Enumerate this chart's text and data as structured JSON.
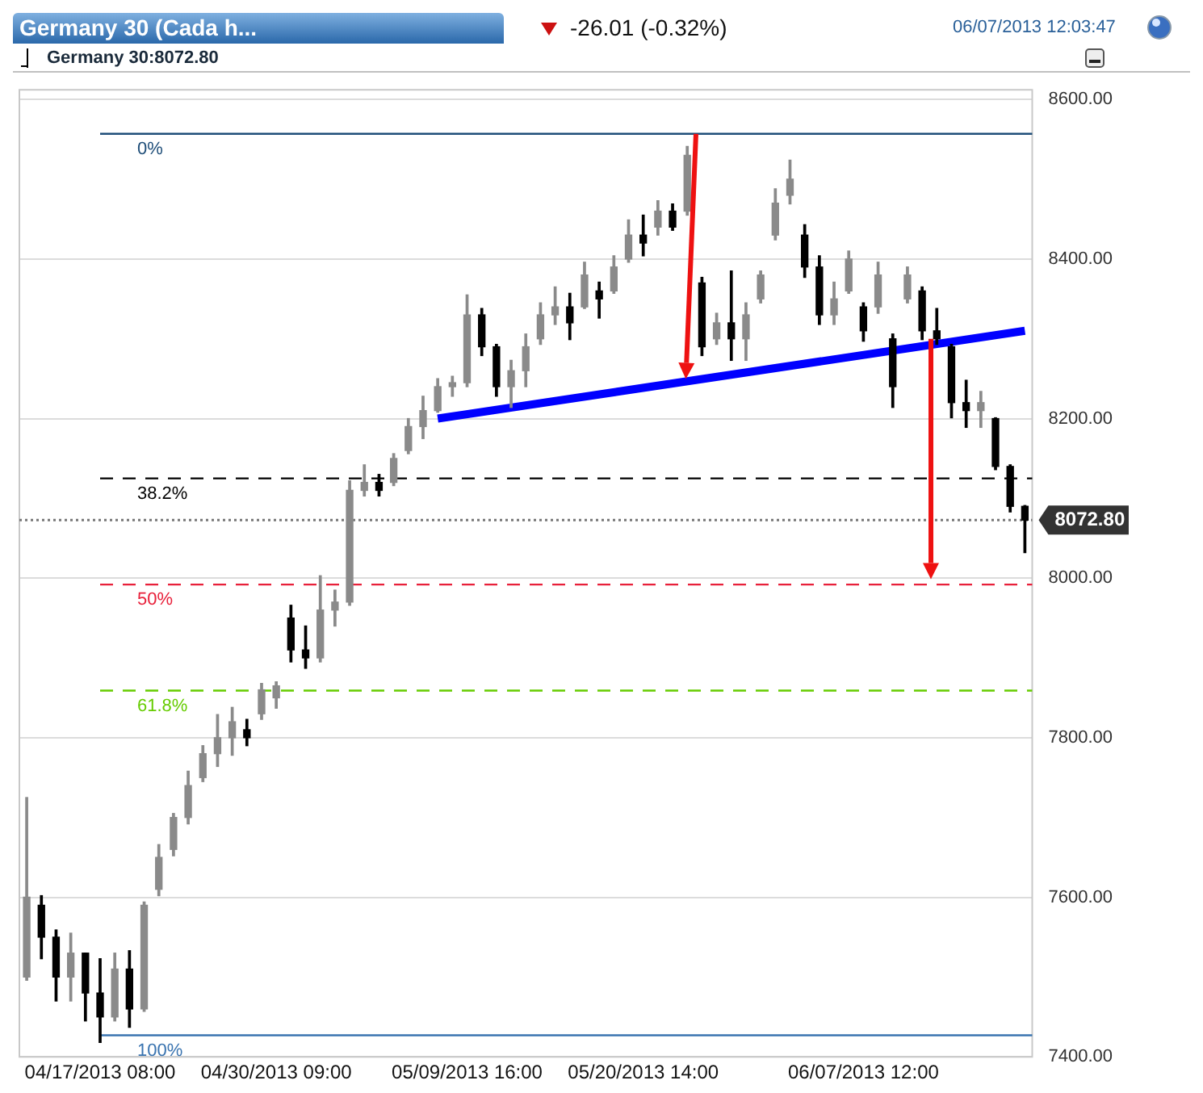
{
  "chart_data": {
    "type": "candlestick",
    "title": "Germany 30 (Cada h...",
    "annotations": [
      "-26.01 (-0.32%)",
      "06/07/2013 12:03:47",
      "Germany 30:8072.80",
      {
        "text": "0%",
        "y": 8557
      },
      {
        "text": "38.2%",
        "y": 8125
      },
      {
        "text": "50%",
        "y": 7992
      },
      {
        "text": "61.8%",
        "y": 7859
      },
      {
        "text": "100%",
        "y": 7427
      }
    ],
    "categories": [
      null,
      null,
      null,
      null,
      null,
      "04/17/2013 08:00",
      null,
      null,
      null,
      null,
      null,
      null,
      null,
      null,
      null,
      null,
      null,
      "04/30/2013 09:00",
      null,
      null,
      null,
      null,
      null,
      null,
      null,
      null,
      null,
      null,
      null,
      null,
      "05/09/2013 16:00",
      null,
      null,
      null,
      null,
      null,
      null,
      null,
      null,
      null,
      null,
      null,
      "05/20/2013 14:00",
      null,
      null,
      null,
      null,
      null,
      null,
      null,
      null,
      null,
      null,
      null,
      null,
      null,
      null,
      "06/07/2013 12:00",
      null,
      null,
      null,
      null,
      null,
      null,
      null,
      null,
      null,
      null,
      null
    ],
    "ohlc": [
      [
        7500,
        7725,
        7496,
        7600
      ],
      [
        7590,
        7602,
        7523,
        7550
      ],
      [
        7550,
        7559,
        7470,
        7500
      ],
      [
        7500,
        7555,
        7470,
        7530
      ],
      [
        7530,
        7530,
        7445,
        7480
      ],
      [
        7480,
        7523,
        7418,
        7450
      ],
      [
        7450,
        7530,
        7445,
        7510
      ],
      [
        7510,
        7533,
        7437,
        7460
      ],
      [
        7460,
        7594,
        7457,
        7590
      ],
      [
        7610,
        7666,
        7602,
        7650
      ],
      [
        7660,
        7705,
        7652,
        7700
      ],
      [
        7700,
        7758,
        7692,
        7740
      ],
      [
        7750,
        7790,
        7745,
        7780
      ],
      [
        7780,
        7829,
        7764,
        7800
      ],
      [
        7800,
        7838,
        7778,
        7820
      ],
      [
        7810,
        7823,
        7790,
        7800
      ],
      [
        7830,
        7868,
        7823,
        7860
      ],
      [
        7850,
        7870,
        7837,
        7865
      ],
      [
        7950,
        7966,
        7895,
        7910
      ],
      [
        7910,
        7940,
        7887,
        7900
      ],
      [
        7900,
        8003,
        7895,
        7960
      ],
      [
        7960,
        7985,
        7940,
        7970
      ],
      [
        7970,
        8122,
        7966,
        8110
      ],
      [
        8110,
        8142,
        8103,
        8120
      ],
      [
        8120,
        8130,
        8103,
        8110
      ],
      [
        8120,
        8156,
        8116,
        8150
      ],
      [
        8160,
        8200,
        8156,
        8190
      ],
      [
        8190,
        8228,
        8175,
        8210
      ],
      [
        8210,
        8250,
        8208,
        8240
      ],
      [
        8240,
        8253,
        8228,
        8245
      ],
      [
        8245,
        8355,
        8240,
        8330
      ],
      [
        8330,
        8338,
        8279,
        8290
      ],
      [
        8290,
        8293,
        8228,
        8240
      ],
      [
        8240,
        8273,
        8214,
        8260
      ],
      [
        8260,
        8306,
        8240,
        8290
      ],
      [
        8300,
        8345,
        8293,
        8330
      ],
      [
        8330,
        8365,
        8318,
        8340
      ],
      [
        8340,
        8357,
        8299,
        8320
      ],
      [
        8340,
        8396,
        8338,
        8380
      ],
      [
        8360,
        8371,
        8326,
        8350
      ],
      [
        8360,
        8404,
        8357,
        8390
      ],
      [
        8400,
        8449,
        8396,
        8430
      ],
      [
        8430,
        8455,
        8404,
        8420
      ],
      [
        8440,
        8473,
        8430,
        8460
      ],
      [
        8460,
        8469,
        8436,
        8440
      ],
      [
        8460,
        8541,
        8455,
        8530
      ],
      [
        8370,
        8377,
        8279,
        8290
      ],
      [
        8300,
        8332,
        8293,
        8320
      ],
      [
        8320,
        8385,
        8273,
        8300
      ],
      [
        8300,
        8345,
        8273,
        8330
      ],
      [
        8350,
        8385,
        8345,
        8380
      ],
      [
        8430,
        8488,
        8424,
        8470
      ],
      [
        8480,
        8524,
        8469,
        8500
      ],
      [
        8430,
        8443,
        8377,
        8390
      ],
      [
        8390,
        8404,
        8318,
        8330
      ],
      [
        8330,
        8371,
        8318,
        8350
      ],
      [
        8360,
        8410,
        8357,
        8400
      ],
      [
        8340,
        8345,
        8297,
        8310
      ],
      [
        8340,
        8396,
        8332,
        8380
      ],
      [
        8300,
        8306,
        8214,
        8240
      ],
      [
        8350,
        8390,
        8345,
        8380
      ],
      [
        8360,
        8365,
        8299,
        8310
      ],
      [
        8310,
        8338,
        8293,
        8300
      ],
      [
        8290,
        8293,
        8201,
        8220
      ],
      [
        8220,
        8248,
        8189,
        8210
      ],
      [
        8210,
        8234,
        8189,
        8220
      ],
      [
        8200,
        8201,
        8136,
        8140
      ],
      [
        8140,
        8142,
        8083,
        8090
      ],
      [
        8090,
        8091,
        8032,
        8072.8
      ]
    ],
    "series": [
      {
        "type": "line",
        "color": "#0000ff",
        "values": [
          null,
          null,
          null,
          null,
          null,
          null,
          null,
          null,
          null,
          null,
          null,
          null,
          null,
          null,
          null,
          null,
          null,
          null,
          null,
          null,
          null,
          null,
          null,
          null,
          null,
          null,
          null,
          null,
          8200,
          null,
          null,
          null,
          null,
          null,
          null,
          null,
          null,
          null,
          null,
          null,
          null,
          null,
          null,
          null,
          null,
          null,
          null,
          null,
          null,
          null,
          null,
          null,
          null,
          null,
          null,
          null,
          null,
          null,
          null,
          null,
          null,
          null,
          null,
          null,
          null,
          null,
          null,
          null,
          8310
        ]
      }
    ],
    "ylim": [
      7400,
      8600
    ],
    "yticks": [
      {
        "value": 7400,
        "label": "7400.00"
      },
      {
        "value": 7600,
        "label": "7600.00"
      },
      {
        "value": 7800,
        "label": "7800.00"
      },
      {
        "value": 8000,
        "label": "8000.00"
      },
      {
        "value": 8200,
        "label": "8200.00"
      },
      {
        "value": 8400,
        "label": "8400.00"
      },
      {
        "value": 8600,
        "label": "8600.00"
      }
    ],
    "grid": "y",
    "ref_lines": [
      {
        "axis": "y",
        "value": 8557,
        "color": "#1f4e79",
        "line_style": "solid"
      },
      {
        "axis": "y",
        "value": 8125,
        "color": "#000000",
        "line_style": "dashed"
      },
      {
        "axis": "y",
        "value": 8072.8,
        "label": "8072.80",
        "color": "#777777",
        "line_style": "dotted"
      },
      {
        "axis": "y",
        "value": 7992,
        "color": "#e8203a",
        "line_style": "dashed"
      },
      {
        "axis": "y",
        "value": 7859,
        "color": "#66cc00",
        "line_style": "dashed"
      },
      {
        "axis": "y",
        "value": 7427,
        "color": "#3a74b0",
        "line_style": "solid"
      }
    ]
  }
}
